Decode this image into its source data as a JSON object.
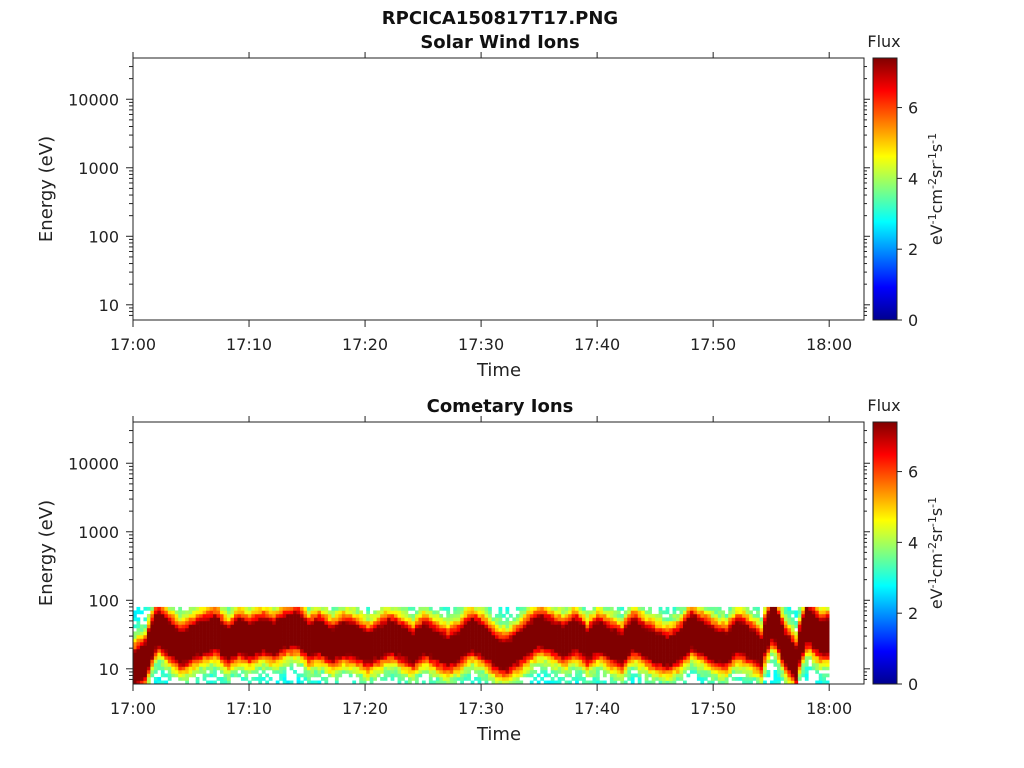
{
  "figure_title": "RPCICA150817T17.PNG",
  "chart_data": [
    {
      "type": "heatmap",
      "title": "Solar Wind Ions",
      "xlabel": "Time",
      "ylabel": "Energy (eV)",
      "x_ticks": [
        "17:00",
        "17:10",
        "17:20",
        "17:30",
        "17:40",
        "17:50",
        "18:00"
      ],
      "xlim_minutes": [
        0,
        63
      ],
      "y_scale": "log",
      "ylim": [
        6,
        40000
      ],
      "y_ticks": [
        {
          "value": 10,
          "label": "10"
        },
        {
          "value": 100,
          "label": "100"
        },
        {
          "value": 1000,
          "label": "1000"
        },
        {
          "value": 10000,
          "label": "10000"
        }
      ],
      "colorbar": {
        "title": "Flux",
        "units": "eV-1cm-2sr-1s-1",
        "range": [
          0,
          7.4
        ],
        "ticks": [
          0,
          2,
          4,
          6
        ],
        "colormap": "jet"
      },
      "data": "empty"
    },
    {
      "type": "heatmap",
      "title": "Cometary Ions",
      "xlabel": "Time",
      "ylabel": "Energy (eV)",
      "x_ticks": [
        "17:00",
        "17:10",
        "17:20",
        "17:30",
        "17:40",
        "17:50",
        "18:00"
      ],
      "xlim_minutes": [
        0,
        63
      ],
      "y_scale": "log",
      "ylim": [
        6,
        40000
      ],
      "y_ticks": [
        {
          "value": 10,
          "label": "10"
        },
        {
          "value": 100,
          "label": "100"
        },
        {
          "value": 1000,
          "label": "1000"
        },
        {
          "value": 10000,
          "label": "10000"
        }
      ],
      "colorbar": {
        "title": "Flux",
        "units": "eV-1cm-2sr-1s-1",
        "range": [
          0,
          7.4
        ],
        "ticks": [
          0,
          2,
          4,
          6
        ],
        "colormap": "jet"
      },
      "data_time_range_minutes": [
        0,
        59
      ],
      "data_energy_range_ev": [
        6,
        80
      ],
      "peak_energy_ev_by_minute": [
        {
          "t": 0,
          "e": 10
        },
        {
          "t": 1,
          "e": 14
        },
        {
          "t": 2,
          "e": 40
        },
        {
          "t": 3,
          "e": 28
        },
        {
          "t": 4,
          "e": 20
        },
        {
          "t": 5,
          "e": 25
        },
        {
          "t": 6,
          "e": 30
        },
        {
          "t": 7,
          "e": 34
        },
        {
          "t": 8,
          "e": 22
        },
        {
          "t": 9,
          "e": 30
        },
        {
          "t": 10,
          "e": 26
        },
        {
          "t": 11,
          "e": 32
        },
        {
          "t": 12,
          "e": 28
        },
        {
          "t": 13,
          "e": 35
        },
        {
          "t": 14,
          "e": 38
        },
        {
          "t": 15,
          "e": 26
        },
        {
          "t": 16,
          "e": 30
        },
        {
          "t": 17,
          "e": 22
        },
        {
          "t": 18,
          "e": 28
        },
        {
          "t": 19,
          "e": 26
        },
        {
          "t": 20,
          "e": 20
        },
        {
          "t": 21,
          "e": 24
        },
        {
          "t": 22,
          "e": 30
        },
        {
          "t": 23,
          "e": 25
        },
        {
          "t": 24,
          "e": 20
        },
        {
          "t": 25,
          "e": 28
        },
        {
          "t": 26,
          "e": 22
        },
        {
          "t": 27,
          "e": 18
        },
        {
          "t": 28,
          "e": 22
        },
        {
          "t": 29,
          "e": 32
        },
        {
          "t": 30,
          "e": 26
        },
        {
          "t": 31,
          "e": 18
        },
        {
          "t": 32,
          "e": 15
        },
        {
          "t": 33,
          "e": 20
        },
        {
          "t": 34,
          "e": 28
        },
        {
          "t": 35,
          "e": 36
        },
        {
          "t": 36,
          "e": 30
        },
        {
          "t": 37,
          "e": 25
        },
        {
          "t": 38,
          "e": 32
        },
        {
          "t": 39,
          "e": 22
        },
        {
          "t": 40,
          "e": 30
        },
        {
          "t": 41,
          "e": 24
        },
        {
          "t": 42,
          "e": 20
        },
        {
          "t": 43,
          "e": 32
        },
        {
          "t": 44,
          "e": 24
        },
        {
          "t": 45,
          "e": 20
        },
        {
          "t": 46,
          "e": 18
        },
        {
          "t": 47,
          "e": 22
        },
        {
          "t": 48,
          "e": 35
        },
        {
          "t": 49,
          "e": 28
        },
        {
          "t": 50,
          "e": 22
        },
        {
          "t": 51,
          "e": 20
        },
        {
          "t": 52,
          "e": 30
        },
        {
          "t": 53,
          "e": 24
        },
        {
          "t": 54,
          "e": 18
        },
        {
          "t": 55,
          "e": 50
        },
        {
          "t": 56,
          "e": 20
        },
        {
          "t": 57,
          "e": 12
        },
        {
          "t": 58,
          "e": 45
        },
        {
          "t": 59,
          "e": 30
        }
      ],
      "peak_flux_by_minute": [
        {
          "t": 0,
          "v": 6.8
        },
        {
          "t": 1,
          "v": 7.0
        },
        {
          "t": 2,
          "v": 7.0
        },
        {
          "t": 3,
          "v": 6.6
        },
        {
          "t": 4,
          "v": 6.4
        },
        {
          "t": 5,
          "v": 6.8
        },
        {
          "t": 6,
          "v": 6.6
        },
        {
          "t": 7,
          "v": 6.8
        },
        {
          "t": 8,
          "v": 6.2
        },
        {
          "t": 9,
          "v": 7.0
        },
        {
          "t": 10,
          "v": 6.8
        },
        {
          "t": 11,
          "v": 6.8
        },
        {
          "t": 12,
          "v": 6.6
        },
        {
          "t": 13,
          "v": 6.6
        },
        {
          "t": 14,
          "v": 6.8
        },
        {
          "t": 15,
          "v": 6.4
        },
        {
          "t": 16,
          "v": 6.8
        },
        {
          "t": 17,
          "v": 6.4
        },
        {
          "t": 18,
          "v": 6.6
        },
        {
          "t": 19,
          "v": 6.2
        },
        {
          "t": 20,
          "v": 6.0
        },
        {
          "t": 21,
          "v": 6.2
        },
        {
          "t": 22,
          "v": 6.6
        },
        {
          "t": 23,
          "v": 6.2
        },
        {
          "t": 24,
          "v": 6.0
        },
        {
          "t": 25,
          "v": 6.2
        },
        {
          "t": 26,
          "v": 6.0
        },
        {
          "t": 27,
          "v": 5.8
        },
        {
          "t": 28,
          "v": 6.0
        },
        {
          "t": 29,
          "v": 6.6
        },
        {
          "t": 30,
          "v": 6.4
        },
        {
          "t": 31,
          "v": 5.8
        },
        {
          "t": 32,
          "v": 5.6
        },
        {
          "t": 33,
          "v": 5.8
        },
        {
          "t": 34,
          "v": 6.2
        },
        {
          "t": 35,
          "v": 6.2
        },
        {
          "t": 36,
          "v": 6.0
        },
        {
          "t": 37,
          "v": 5.8
        },
        {
          "t": 38,
          "v": 6.4
        },
        {
          "t": 39,
          "v": 5.8
        },
        {
          "t": 40,
          "v": 6.2
        },
        {
          "t": 41,
          "v": 6.0
        },
        {
          "t": 42,
          "v": 5.8
        },
        {
          "t": 43,
          "v": 6.4
        },
        {
          "t": 44,
          "v": 6.0
        },
        {
          "t": 45,
          "v": 6.0
        },
        {
          "t": 46,
          "v": 5.8
        },
        {
          "t": 47,
          "v": 6.0
        },
        {
          "t": 48,
          "v": 6.8
        },
        {
          "t": 49,
          "v": 6.6
        },
        {
          "t": 50,
          "v": 6.4
        },
        {
          "t": 51,
          "v": 6.0
        },
        {
          "t": 52,
          "v": 6.6
        },
        {
          "t": 53,
          "v": 6.2
        },
        {
          "t": 54,
          "v": 5.8
        },
        {
          "t": 55,
          "v": 7.0
        },
        {
          "t": 56,
          "v": 6.6
        },
        {
          "t": 57,
          "v": 6.0
        },
        {
          "t": 58,
          "v": 7.2
        },
        {
          "t": 59,
          "v": 6.8
        }
      ]
    }
  ]
}
